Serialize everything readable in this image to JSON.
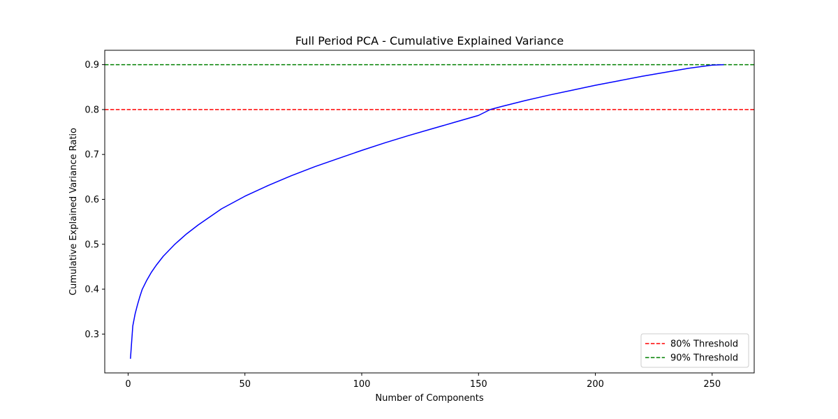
{
  "chart_data": {
    "type": "line",
    "title": "Full Period PCA - Cumulative Explained Variance",
    "xlabel": "Number of Components",
    "ylabel": "Cumulative Explained Variance Ratio",
    "xlim": [
      -10,
      268
    ],
    "ylim": [
      0.2135,
      0.932
    ],
    "xticks": [
      0,
      50,
      100,
      150,
      200,
      250
    ],
    "yticks": [
      0.3,
      0.4,
      0.5,
      0.6,
      0.7,
      0.8,
      0.9
    ],
    "xtick_labels": [
      "0",
      "50",
      "100",
      "150",
      "200",
      "250"
    ],
    "ytick_labels": [
      "0.3",
      "0.4",
      "0.5",
      "0.6",
      "0.7",
      "0.8",
      "0.9"
    ],
    "series": [
      {
        "color": "#0000ff",
        "style": "solid",
        "x": [
          1,
          2,
          3,
          4,
          5,
          6,
          8,
          10,
          12,
          15,
          20,
          25,
          30,
          40,
          50,
          60,
          70,
          80,
          90,
          100,
          110,
          120,
          130,
          140,
          150,
          155,
          160,
          170,
          180,
          190,
          200,
          210,
          220,
          230,
          240,
          250,
          255
        ],
        "y": [
          0.245,
          0.318,
          0.345,
          0.365,
          0.383,
          0.399,
          0.42,
          0.438,
          0.453,
          0.473,
          0.5,
          0.523,
          0.543,
          0.579,
          0.607,
          0.631,
          0.653,
          0.673,
          0.691,
          0.709,
          0.726,
          0.742,
          0.757,
          0.772,
          0.787,
          0.8,
          0.807,
          0.82,
          0.832,
          0.843,
          0.854,
          0.864,
          0.874,
          0.883,
          0.892,
          0.899,
          0.9
        ]
      }
    ],
    "hlines": [
      {
        "y": 0.8,
        "color": "#ff0000",
        "style": "dashed",
        "label": "80% Threshold"
      },
      {
        "y": 0.9,
        "color": "#008000",
        "style": "dashed",
        "label": "90% Threshold"
      }
    ],
    "grid": false,
    "legend": {
      "position": "lower-right",
      "entries": [
        "80% Threshold",
        "90% Threshold"
      ]
    }
  }
}
